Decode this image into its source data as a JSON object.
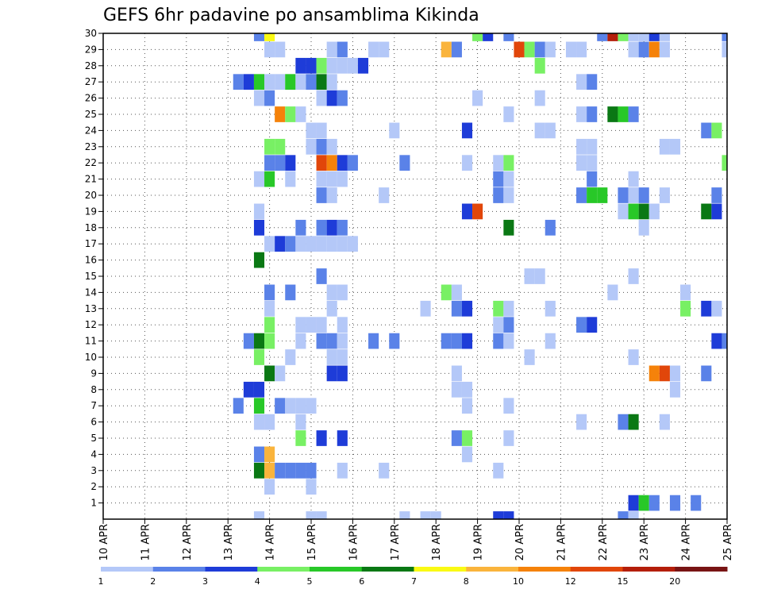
{
  "chart_data": {
    "type": "heatmap",
    "title": "GEFS 6hr padavine po ansamblima Kikinda",
    "xlabel": "",
    "ylabel": "",
    "x_ticks": [
      "10 APR",
      "11 APR",
      "12 APR",
      "13 APR",
      "14 APR",
      "15 APR",
      "16 APR",
      "17 APR",
      "18 APR",
      "19 APR",
      "20 APR",
      "21 APR",
      "22 APR",
      "23 APR",
      "24 APR",
      "25 APR"
    ],
    "x_range": [
      "10 APR 00",
      "25 APR 00"
    ],
    "time_step_hours": 6,
    "y_ticks": [
      1,
      2,
      3,
      4,
      5,
      6,
      7,
      8,
      9,
      10,
      11,
      12,
      13,
      14,
      15,
      16,
      17,
      18,
      19,
      20,
      21,
      22,
      23,
      24,
      25,
      26,
      27,
      28,
      29,
      30
    ],
    "y_range": [
      0,
      30
    ],
    "grid": "dotted",
    "colorbar": {
      "position": "bottom",
      "labels": [
        "1",
        "2",
        "3",
        "4",
        "5",
        "6",
        "7",
        "8",
        "10",
        "12",
        "15",
        "20"
      ],
      "colors": [
        "#b4c8f8",
        "#5a82e8",
        "#1e3cd8",
        "#78f064",
        "#28c828",
        "#0a7814",
        "#fafa14",
        "#fab43c",
        "#f5820a",
        "#e1460a",
        "#b41e0a",
        "#781414"
      ]
    },
    "level_colors": {
      "1": "#b4c8f8",
      "2": "#5a82e8",
      "3": "#1e3cd8",
      "4": "#78f064",
      "5": "#28c828",
      "6": "#0a7814",
      "7": "#fafa14",
      "8": "#fab43c",
      "10": "#f5820a",
      "12": "#e1460a",
      "15": "#b41e0a",
      "20": "#781414"
    },
    "cells": [
      [
        30,
        [
          [
            15,
            2
          ],
          [
            16,
            7
          ],
          [
            36,
            4
          ],
          [
            37,
            3
          ],
          [
            39,
            2
          ],
          [
            48,
            2
          ],
          [
            49,
            15
          ],
          [
            50,
            4
          ],
          [
            51,
            1
          ],
          [
            52,
            1
          ],
          [
            53,
            3
          ],
          [
            54,
            1
          ],
          [
            60,
            2
          ]
        ]
      ],
      [
        29,
        [
          [
            16,
            1
          ],
          [
            17,
            1
          ],
          [
            22,
            1
          ],
          [
            23,
            2
          ],
          [
            26,
            1
          ],
          [
            27,
            1
          ],
          [
            33,
            8
          ],
          [
            34,
            2
          ],
          [
            40,
            12
          ],
          [
            41,
            4
          ],
          [
            42,
            2
          ],
          [
            43,
            1
          ],
          [
            45,
            1
          ],
          [
            46,
            1
          ],
          [
            51,
            1
          ],
          [
            52,
            2
          ],
          [
            53,
            10
          ],
          [
            54,
            1
          ],
          [
            60,
            1
          ]
        ]
      ],
      [
        28,
        [
          [
            19,
            3
          ],
          [
            20,
            3
          ],
          [
            21,
            4
          ],
          [
            22,
            1
          ],
          [
            23,
            1
          ],
          [
            24,
            1
          ],
          [
            25,
            3
          ],
          [
            42,
            4
          ]
        ]
      ],
      [
        27,
        [
          [
            13,
            2
          ],
          [
            14,
            3
          ],
          [
            15,
            5
          ],
          [
            16,
            1
          ],
          [
            17,
            1
          ],
          [
            18,
            5
          ],
          [
            19,
            1
          ],
          [
            20,
            2
          ],
          [
            21,
            6
          ],
          [
            22,
            1
          ],
          [
            46,
            1
          ],
          [
            47,
            2
          ]
        ]
      ],
      [
        26,
        [
          [
            15,
            1
          ],
          [
            16,
            2
          ],
          [
            21,
            1
          ],
          [
            22,
            3
          ],
          [
            23,
            2
          ],
          [
            36,
            1
          ],
          [
            42,
            1
          ]
        ]
      ],
      [
        25,
        [
          [
            17,
            10
          ],
          [
            18,
            4
          ],
          [
            19,
            1
          ],
          [
            39,
            1
          ],
          [
            46,
            1
          ],
          [
            47,
            2
          ],
          [
            49,
            6
          ],
          [
            50,
            5
          ],
          [
            51,
            2
          ]
        ]
      ],
      [
        24,
        [
          [
            20,
            1
          ],
          [
            21,
            1
          ],
          [
            28,
            1
          ],
          [
            35,
            3
          ],
          [
            42,
            1
          ],
          [
            43,
            1
          ],
          [
            58,
            2
          ],
          [
            59,
            4
          ]
        ]
      ],
      [
        23,
        [
          [
            16,
            4
          ],
          [
            17,
            4
          ],
          [
            20,
            1
          ],
          [
            21,
            2
          ],
          [
            22,
            1
          ],
          [
            46,
            1
          ],
          [
            47,
            1
          ],
          [
            54,
            1
          ],
          [
            55,
            1
          ]
        ]
      ],
      [
        22,
        [
          [
            16,
            2
          ],
          [
            17,
            2
          ],
          [
            18,
            3
          ],
          [
            21,
            12
          ],
          [
            22,
            10
          ],
          [
            23,
            3
          ],
          [
            24,
            2
          ],
          [
            29,
            2
          ],
          [
            35,
            1
          ],
          [
            38,
            1
          ],
          [
            39,
            4
          ],
          [
            46,
            1
          ],
          [
            47,
            1
          ],
          [
            60,
            4
          ]
        ]
      ],
      [
        21,
        [
          [
            15,
            1
          ],
          [
            16,
            5
          ],
          [
            18,
            1
          ],
          [
            21,
            1
          ],
          [
            22,
            1
          ],
          [
            23,
            1
          ],
          [
            38,
            2
          ],
          [
            39,
            1
          ],
          [
            47,
            2
          ],
          [
            51,
            1
          ]
        ]
      ],
      [
        20,
        [
          [
            21,
            2
          ],
          [
            22,
            1
          ],
          [
            27,
            1
          ],
          [
            38,
            2
          ],
          [
            39,
            1
          ],
          [
            46,
            2
          ],
          [
            47,
            5
          ],
          [
            48,
            5
          ],
          [
            50,
            2
          ],
          [
            51,
            1
          ],
          [
            52,
            2
          ],
          [
            54,
            1
          ],
          [
            59,
            2
          ]
        ]
      ],
      [
        19,
        [
          [
            15,
            1
          ],
          [
            35,
            3
          ],
          [
            36,
            12
          ],
          [
            50,
            1
          ],
          [
            51,
            5
          ],
          [
            52,
            6
          ],
          [
            53,
            1
          ],
          [
            58,
            6
          ],
          [
            59,
            3
          ]
        ]
      ],
      [
        18,
        [
          [
            15,
            3
          ],
          [
            19,
            2
          ],
          [
            21,
            2
          ],
          [
            22,
            3
          ],
          [
            23,
            2
          ],
          [
            39,
            6
          ],
          [
            43,
            2
          ],
          [
            52,
            1
          ]
        ]
      ],
      [
        17,
        [
          [
            16,
            1
          ],
          [
            17,
            3
          ],
          [
            18,
            2
          ],
          [
            19,
            1
          ],
          [
            20,
            1
          ],
          [
            21,
            1
          ],
          [
            22,
            1
          ],
          [
            23,
            1
          ],
          [
            24,
            1
          ]
        ]
      ],
      [
        16,
        [
          [
            15,
            6
          ]
        ]
      ],
      [
        15,
        [
          [
            21,
            2
          ],
          [
            41,
            1
          ],
          [
            42,
            1
          ],
          [
            51,
            1
          ]
        ]
      ],
      [
        14,
        [
          [
            16,
            2
          ],
          [
            18,
            2
          ],
          [
            22,
            1
          ],
          [
            23,
            1
          ],
          [
            33,
            4
          ],
          [
            34,
            1
          ],
          [
            49,
            1
          ],
          [
            56,
            1
          ]
        ]
      ],
      [
        13,
        [
          [
            16,
            1
          ],
          [
            22,
            1
          ],
          [
            31,
            1
          ],
          [
            34,
            2
          ],
          [
            35,
            3
          ],
          [
            38,
            4
          ],
          [
            39,
            1
          ],
          [
            43,
            1
          ],
          [
            56,
            4
          ],
          [
            58,
            3
          ],
          [
            59,
            1
          ]
        ]
      ],
      [
        12,
        [
          [
            16,
            4
          ],
          [
            19,
            1
          ],
          [
            20,
            1
          ],
          [
            21,
            1
          ],
          [
            23,
            1
          ],
          [
            38,
            1
          ],
          [
            39,
            2
          ],
          [
            46,
            2
          ],
          [
            47,
            3
          ]
        ]
      ],
      [
        11,
        [
          [
            14,
            2
          ],
          [
            15,
            6
          ],
          [
            16,
            4
          ],
          [
            19,
            1
          ],
          [
            21,
            2
          ],
          [
            22,
            2
          ],
          [
            23,
            1
          ],
          [
            26,
            2
          ],
          [
            28,
            2
          ],
          [
            33,
            2
          ],
          [
            34,
            2
          ],
          [
            35,
            3
          ],
          [
            38,
            2
          ],
          [
            39,
            1
          ],
          [
            43,
            1
          ],
          [
            59,
            3
          ],
          [
            60,
            2
          ]
        ]
      ],
      [
        10,
        [
          [
            15,
            4
          ],
          [
            18,
            1
          ],
          [
            22,
            1
          ],
          [
            23,
            1
          ],
          [
            41,
            1
          ],
          [
            51,
            1
          ]
        ]
      ],
      [
        9,
        [
          [
            16,
            6
          ],
          [
            17,
            1
          ],
          [
            22,
            3
          ],
          [
            23,
            3
          ],
          [
            34,
            1
          ],
          [
            53,
            10
          ],
          [
            54,
            12
          ],
          [
            55,
            1
          ],
          [
            58,
            2
          ]
        ]
      ],
      [
        8,
        [
          [
            14,
            3
          ],
          [
            15,
            3
          ],
          [
            34,
            1
          ],
          [
            35,
            1
          ],
          [
            55,
            1
          ]
        ]
      ],
      [
        7,
        [
          [
            13,
            2
          ],
          [
            15,
            5
          ],
          [
            17,
            2
          ],
          [
            18,
            1
          ],
          [
            19,
            1
          ],
          [
            20,
            1
          ],
          [
            35,
            1
          ],
          [
            39,
            1
          ]
        ]
      ],
      [
        6,
        [
          [
            15,
            1
          ],
          [
            16,
            1
          ],
          [
            19,
            1
          ],
          [
            46,
            1
          ],
          [
            50,
            2
          ],
          [
            51,
            6
          ],
          [
            54,
            1
          ]
        ]
      ],
      [
        5,
        [
          [
            19,
            4
          ],
          [
            21,
            3
          ],
          [
            23,
            3
          ],
          [
            34,
            2
          ],
          [
            35,
            4
          ],
          [
            39,
            1
          ]
        ]
      ],
      [
        4,
        [
          [
            15,
            2
          ],
          [
            16,
            8
          ],
          [
            35,
            1
          ]
        ]
      ],
      [
        3,
        [
          [
            15,
            6
          ],
          [
            16,
            8
          ],
          [
            17,
            2
          ],
          [
            18,
            2
          ],
          [
            19,
            2
          ],
          [
            20,
            2
          ],
          [
            23,
            1
          ],
          [
            27,
            1
          ],
          [
            38,
            1
          ]
        ]
      ],
      [
        2,
        [
          [
            16,
            1
          ],
          [
            20,
            1
          ]
        ]
      ],
      [
        1,
        [
          [
            51,
            3
          ],
          [
            52,
            5
          ],
          [
            53,
            2
          ],
          [
            55,
            2
          ],
          [
            57,
            2
          ]
        ]
      ],
      [
        0,
        [
          [
            15,
            1
          ],
          [
            20,
            1
          ],
          [
            21,
            1
          ],
          [
            29,
            1
          ],
          [
            31,
            1
          ],
          [
            32,
            1
          ],
          [
            38,
            3
          ],
          [
            39,
            3
          ],
          [
            50,
            2
          ],
          [
            51,
            1
          ]
        ]
      ]
    ]
  }
}
